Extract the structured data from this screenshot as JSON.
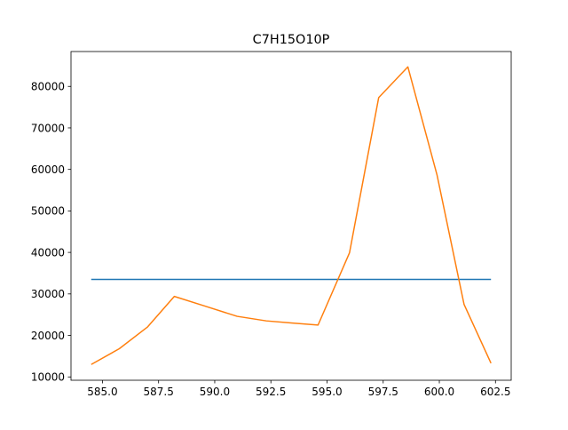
{
  "chart_data": {
    "type": "line",
    "title": "C7H15O10P",
    "xlabel": "",
    "ylabel": "",
    "xlim": [
      583.6,
      603.2
    ],
    "ylim": [
      9200,
      88400
    ],
    "xticks": [
      585.0,
      587.5,
      590.0,
      592.5,
      595.0,
      597.5,
      600.0,
      602.5
    ],
    "xtick_labels": [
      "585.0",
      "587.5",
      "590.0",
      "592.5",
      "595.0",
      "597.5",
      "600.0",
      "602.5"
    ],
    "yticks": [
      10000,
      20000,
      30000,
      40000,
      50000,
      60000,
      70000,
      80000
    ],
    "ytick_labels": [
      "10000",
      "20000",
      "30000",
      "40000",
      "50000",
      "60000",
      "70000",
      "80000"
    ],
    "grid": false,
    "series": [
      {
        "color": "#1f77b4",
        "x": [
          584.5,
          602.3
        ],
        "y": [
          33500,
          33500
        ]
      },
      {
        "color": "#ff7f0e",
        "x": [
          584.5,
          585.75,
          587.0,
          588.2,
          589.6,
          591.0,
          592.3,
          593.4,
          594.6,
          596.0,
          597.3,
          598.6,
          599.9,
          601.1,
          602.3
        ],
        "y": [
          13000,
          16800,
          22000,
          29400,
          27000,
          24600,
          23500,
          23000,
          22500,
          39900,
          77300,
          84700,
          58600,
          27500,
          13300
        ]
      }
    ]
  }
}
